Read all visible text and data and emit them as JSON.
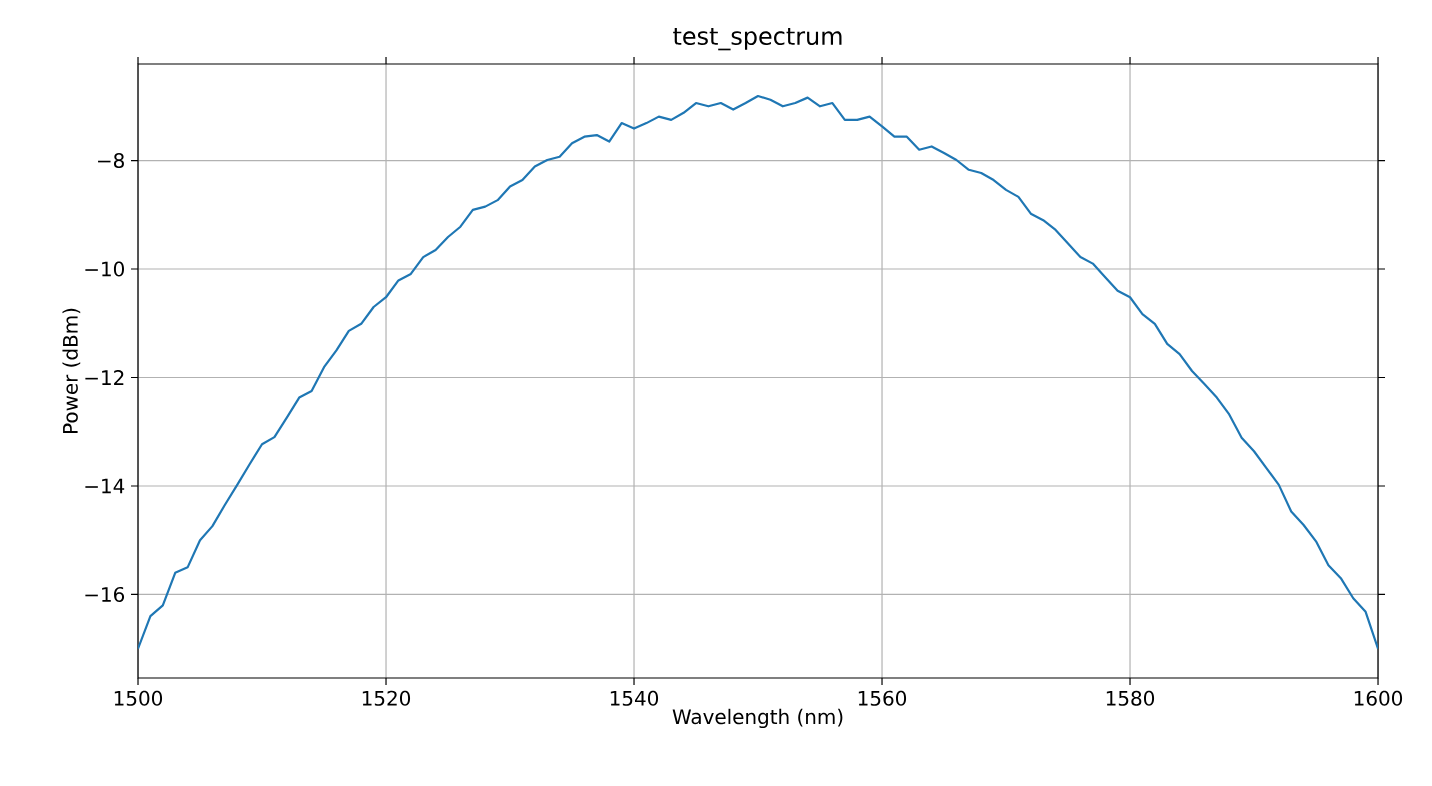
{
  "chart_data": {
    "type": "line",
    "title": "test_spectrum",
    "xlabel": "Wavelength (nm)",
    "ylabel": "Power (dBm)",
    "x": [
      1500,
      1501,
      1502,
      1503,
      1504,
      1505,
      1506,
      1507,
      1508,
      1509,
      1510,
      1511,
      1512,
      1513,
      1514,
      1515,
      1516,
      1517,
      1518,
      1519,
      1520,
      1521,
      1522,
      1523,
      1524,
      1525,
      1526,
      1527,
      1528,
      1529,
      1530,
      1531,
      1532,
      1533,
      1534,
      1535,
      1536,
      1537,
      1538,
      1539,
      1540,
      1541,
      1542,
      1543,
      1544,
      1545,
      1546,
      1547,
      1548,
      1549,
      1550,
      1551,
      1552,
      1553,
      1554,
      1555,
      1556,
      1557,
      1558,
      1559,
      1560,
      1561,
      1562,
      1563,
      1564,
      1565,
      1566,
      1567,
      1568,
      1569,
      1570,
      1571,
      1572,
      1573,
      1574,
      1575,
      1576,
      1577,
      1578,
      1579,
      1580,
      1581,
      1582,
      1583,
      1584,
      1585,
      1586,
      1587,
      1588,
      1589,
      1590,
      1591,
      1592,
      1593,
      1594,
      1595,
      1596,
      1597,
      1598,
      1599,
      1600
    ],
    "series": [
      {
        "color": "#1f77b4",
        "values": [
          -17.0,
          -16.4,
          -16.2,
          -15.6,
          -15.5,
          -15.0,
          -14.74,
          -14.35,
          -13.98,
          -13.6,
          -13.23,
          -13.1,
          -12.74,
          -12.37,
          -12.25,
          -11.81,
          -11.5,
          -11.14,
          -11.01,
          -10.7,
          -10.52,
          -10.21,
          -10.09,
          -9.78,
          -9.65,
          -9.41,
          -9.22,
          -8.91,
          -8.85,
          -8.73,
          -8.48,
          -8.36,
          -8.11,
          -7.99,
          -7.93,
          -7.68,
          -7.56,
          -7.53,
          -7.65,
          -7.31,
          -7.41,
          -7.31,
          -7.19,
          -7.25,
          -7.12,
          -6.94,
          -7.0,
          -6.94,
          -7.06,
          -6.94,
          -6.81,
          -6.88,
          -7.0,
          -6.94,
          -6.84,
          -7.0,
          -6.94,
          -7.25,
          -7.25,
          -7.19,
          -7.37,
          -7.56,
          -7.56,
          -7.8,
          -7.74,
          -7.86,
          -7.99,
          -8.17,
          -8.23,
          -8.36,
          -8.54,
          -8.67,
          -8.98,
          -9.1,
          -9.28,
          -9.53,
          -9.78,
          -9.9,
          -10.15,
          -10.4,
          -10.52,
          -10.83,
          -11.01,
          -11.38,
          -11.57,
          -11.88,
          -12.12,
          -12.37,
          -12.68,
          -13.11,
          -13.36,
          -13.67,
          -13.98,
          -14.47,
          -14.72,
          -15.02,
          -15.46,
          -15.7,
          -16.07,
          -16.32,
          -17.0
        ]
      }
    ],
    "xlim": [
      1500,
      1600
    ],
    "ylim": [
      -17.54,
      -6.22
    ],
    "xticks": [
      1500,
      1520,
      1540,
      1560,
      1580,
      1600
    ],
    "yticks": [
      {
        "value": -16,
        "label": "−16"
      },
      {
        "value": -14,
        "label": "−14"
      },
      {
        "value": -12,
        "label": "−12"
      },
      {
        "value": -10,
        "label": "−10"
      },
      {
        "value": -8,
        "label": "−8"
      }
    ],
    "grid": true,
    "line_style": "solid"
  }
}
